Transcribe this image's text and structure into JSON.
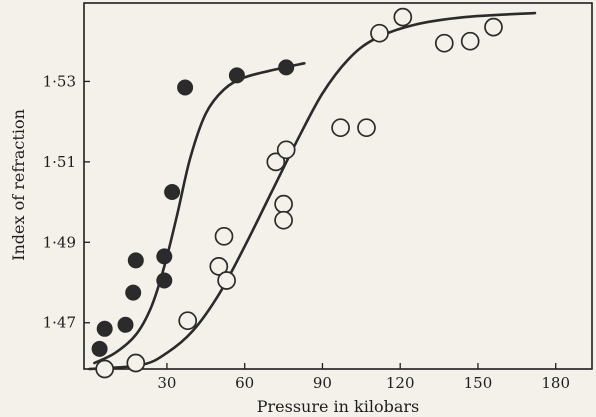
{
  "chart_data": {
    "type": "scatter",
    "xlabel": "Pressure in kilobars",
    "ylabel": "Index of refraction",
    "xlim": [
      -2,
      194
    ],
    "ylim": [
      1.4585,
      1.5495
    ],
    "xticks": [
      30,
      60,
      90,
      120,
      150,
      180
    ],
    "xtick_labels": [
      "30",
      "60",
      "90",
      "120",
      "150",
      "180"
    ],
    "yticks": [
      1.47,
      1.49,
      1.51,
      1.53
    ],
    "ytick_labels": [
      "1·47",
      "1·49",
      "1·51",
      "1·53"
    ],
    "grid": false,
    "series": [
      {
        "marker": "filled-circle",
        "color": "#2b2b2b",
        "points": [
          [
            4,
            1.4635
          ],
          [
            6,
            1.4685
          ],
          [
            14,
            1.4695
          ],
          [
            17,
            1.4775
          ],
          [
            18,
            1.4855
          ],
          [
            29,
            1.4805
          ],
          [
            29,
            1.4865
          ],
          [
            32,
            1.5025
          ],
          [
            37,
            1.5285
          ],
          [
            57,
            1.5315
          ],
          [
            76,
            1.5335
          ]
        ],
        "curve": [
          [
            2,
            1.46
          ],
          [
            10,
            1.4625
          ],
          [
            18,
            1.467
          ],
          [
            24,
            1.474
          ],
          [
            29,
            1.484
          ],
          [
            34,
            1.497
          ],
          [
            39,
            1.511
          ],
          [
            45,
            1.522
          ],
          [
            52,
            1.528
          ],
          [
            60,
            1.531
          ],
          [
            72,
            1.533
          ],
          [
            83,
            1.5345
          ]
        ]
      },
      {
        "marker": "open-circle",
        "color": "#2b2b2b",
        "points": [
          [
            6,
            1.4585
          ],
          [
            18,
            1.46
          ],
          [
            38,
            1.4705
          ],
          [
            50,
            1.484
          ],
          [
            52,
            1.4915
          ],
          [
            53,
            1.4805
          ],
          [
            72,
            1.51
          ],
          [
            76,
            1.513
          ],
          [
            75,
            1.4995
          ],
          [
            75,
            1.4955
          ],
          [
            97,
            1.5185
          ],
          [
            107,
            1.5185
          ],
          [
            112,
            1.542
          ],
          [
            121,
            1.546
          ],
          [
            137,
            1.5395
          ],
          [
            147,
            1.54
          ],
          [
            156,
            1.5435
          ]
        ],
        "curve": [
          [
            0,
            1.4585
          ],
          [
            20,
            1.4595
          ],
          [
            30,
            1.4625
          ],
          [
            40,
            1.468
          ],
          [
            50,
            1.477
          ],
          [
            60,
            1.489
          ],
          [
            70,
            1.502
          ],
          [
            80,
            1.515
          ],
          [
            90,
            1.527
          ],
          [
            100,
            1.5355
          ],
          [
            110,
            1.5405
          ],
          [
            125,
            1.544
          ],
          [
            145,
            1.546
          ],
          [
            172,
            1.547
          ]
        ]
      }
    ]
  }
}
